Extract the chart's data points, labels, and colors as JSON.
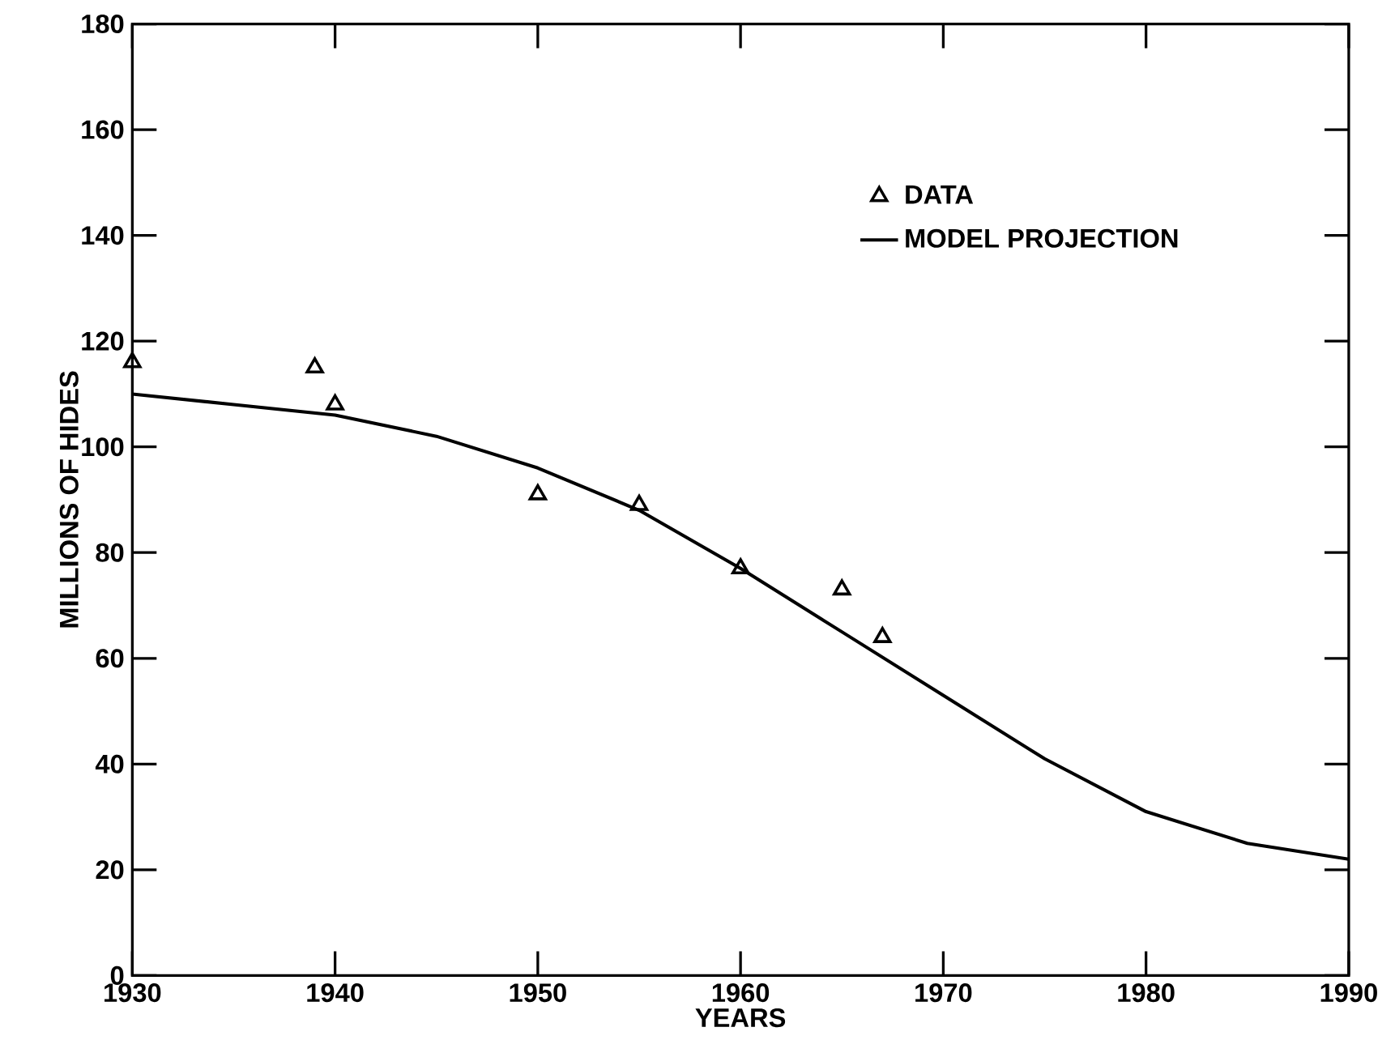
{
  "chart_data": {
    "type": "scatter",
    "xlabel": "YEARS",
    "ylabel": "MILLIONS OF HIDES",
    "xlim": [
      1930,
      1990
    ],
    "xticks": [
      1930,
      1940,
      1950,
      1960,
      1970,
      1980,
      1990
    ],
    "ylim": [
      0,
      180
    ],
    "yticks": [
      0,
      20,
      40,
      60,
      80,
      100,
      120,
      140,
      160,
      180
    ],
    "grid": false,
    "legend": "top right",
    "series": [
      {
        "name": "DATA",
        "marker": "triangle",
        "color": "#000000",
        "x": [
          1930,
          1939,
          1940,
          1950,
          1955,
          1960,
          1965,
          1967
        ],
        "values": [
          116,
          115,
          108,
          91,
          89,
          77,
          73,
          64
        ]
      },
      {
        "name": "MODEL PROJECTION",
        "type": "line",
        "marker": "none",
        "line_style": "solid",
        "color": "#000000",
        "x": [
          1930,
          1935,
          1940,
          1945,
          1950,
          1955,
          1960,
          1965,
          1970,
          1975,
          1980,
          1985,
          1990
        ],
        "values": [
          110,
          108,
          106,
          102,
          96,
          88,
          77,
          65,
          53,
          41,
          31,
          25,
          22
        ]
      }
    ]
  }
}
